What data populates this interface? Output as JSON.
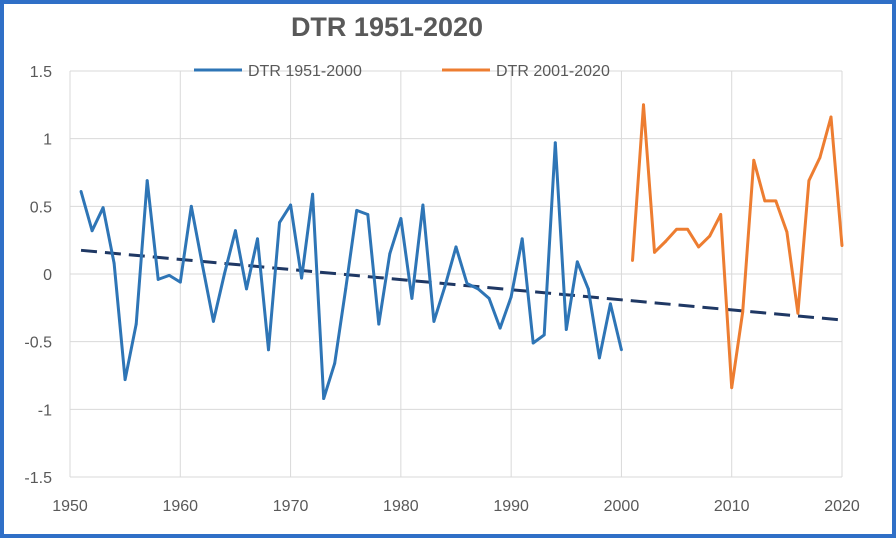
{
  "chart_data": {
    "type": "line",
    "title": "DTR 1951-2020",
    "xlabel": "",
    "ylabel": "",
    "xlim": [
      1950,
      2020
    ],
    "ylim": [
      -1.5,
      1.5
    ],
    "x_ticks": [
      "1950",
      "1960",
      "1970",
      "1980",
      "1990",
      "2000",
      "2010",
      "2020"
    ],
    "y_ticks": [
      "1.5",
      "1",
      "0.5",
      "0",
      "-0.5",
      "-1",
      "-1.5"
    ],
    "grid": true,
    "legend_position": "top",
    "series": [
      {
        "name": "DTR 1951-2000",
        "color": "#2e75b6",
        "x": [
          1951,
          1952,
          1953,
          1954,
          1955,
          1956,
          1957,
          1958,
          1959,
          1960,
          1961,
          1962,
          1963,
          1964,
          1965,
          1966,
          1967,
          1968,
          1969,
          1970,
          1971,
          1972,
          1973,
          1974,
          1975,
          1976,
          1977,
          1978,
          1979,
          1980,
          1981,
          1982,
          1983,
          1984,
          1985,
          1986,
          1987,
          1988,
          1989,
          1990,
          1991,
          1992,
          1993,
          1994,
          1995,
          1996,
          1997,
          1998,
          1999,
          2000
        ],
        "y": [
          0.61,
          0.32,
          0.49,
          0.08,
          -0.78,
          -0.37,
          0.69,
          -0.04,
          -0.01,
          -0.06,
          0.5,
          0.07,
          -0.35,
          0.0,
          0.32,
          -0.11,
          0.26,
          -0.56,
          0.38,
          0.51,
          -0.03,
          0.59,
          -0.92,
          -0.66,
          -0.11,
          0.47,
          0.44,
          -0.37,
          0.15,
          0.41,
          -0.18,
          0.51,
          -0.35,
          -0.09,
          0.2,
          -0.07,
          -0.11,
          -0.18,
          -0.4,
          -0.17,
          0.26,
          -0.51,
          -0.45,
          0.97,
          -0.41,
          0.09,
          -0.11,
          -0.62,
          -0.22,
          -0.56
        ]
      },
      {
        "name": "DTR 2001-2020",
        "color": "#ed7d31",
        "x": [
          2001,
          2002,
          2003,
          2004,
          2005,
          2006,
          2007,
          2008,
          2009,
          2010,
          2011,
          2012,
          2013,
          2014,
          2015,
          2016,
          2017,
          2018,
          2019,
          2020
        ],
        "y": [
          0.1,
          1.25,
          0.16,
          0.24,
          0.33,
          0.33,
          0.2,
          0.28,
          0.44,
          -0.84,
          -0.28,
          0.84,
          0.54,
          0.54,
          0.31,
          -0.29,
          0.69,
          0.86,
          1.16,
          0.21
        ]
      }
    ],
    "trendline": {
      "style": "dashed",
      "color": "#1f3864",
      "x": [
        1951,
        2020
      ],
      "y": [
        0.175,
        -0.34
      ]
    }
  }
}
